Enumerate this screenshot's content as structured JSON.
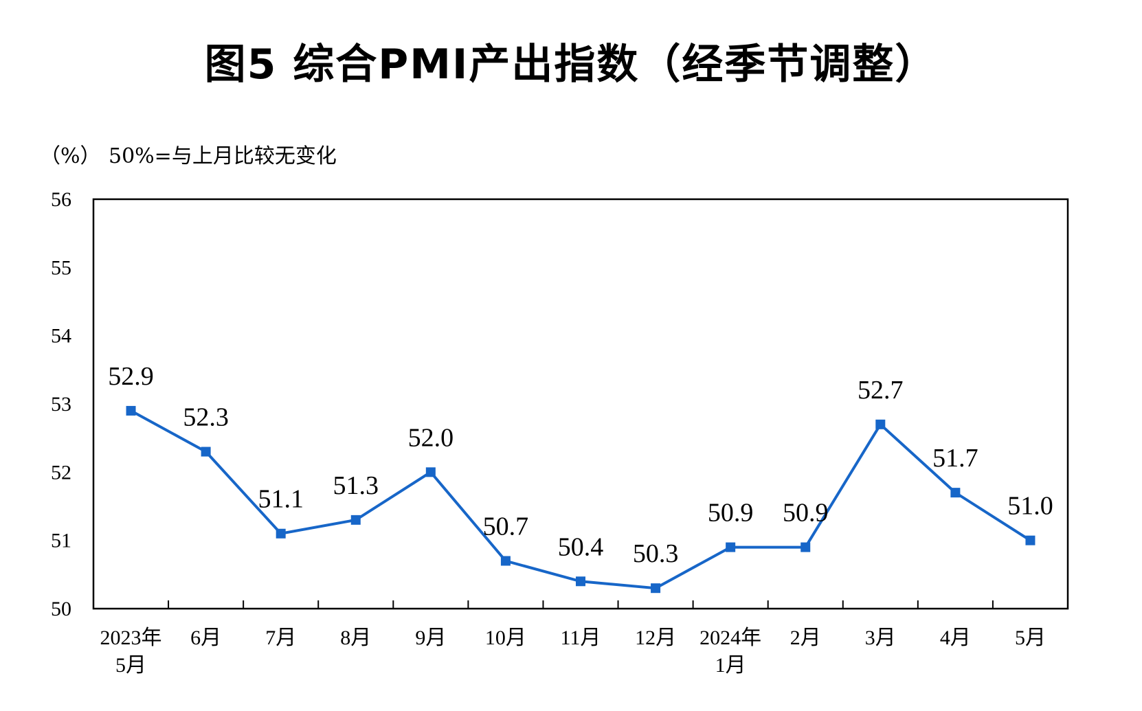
{
  "chart_data": {
    "type": "line",
    "title": "图5  综合PMI产出指数（经季节调整）",
    "y_unit": "（%）",
    "y_note": "50%=与上月比较无变化",
    "categories": [
      [
        "2023年",
        "5月"
      ],
      [
        "6月"
      ],
      [
        "7月"
      ],
      [
        "8月"
      ],
      [
        "9月"
      ],
      [
        "10月"
      ],
      [
        "11月"
      ],
      [
        "12月"
      ],
      [
        "2024年",
        "1月"
      ],
      [
        "2月"
      ],
      [
        "3月"
      ],
      [
        "4月"
      ],
      [
        "5月"
      ]
    ],
    "values": [
      52.9,
      52.3,
      51.1,
      51.3,
      52.0,
      50.7,
      50.4,
      50.3,
      50.9,
      50.9,
      52.7,
      51.7,
      51.0
    ],
    "value_labels": [
      "52.9",
      "52.3",
      "51.1",
      "51.3",
      "52.0",
      "50.7",
      "50.4",
      "50.3",
      "50.9",
      "50.9",
      "52.7",
      "51.7",
      "51.0"
    ],
    "ylim": [
      50,
      56
    ],
    "yticks": [
      "50",
      "51",
      "52",
      "53",
      "54",
      "55",
      "56"
    ],
    "grid": false,
    "legend": "none",
    "colors": {
      "line": "#1766C8",
      "axis": "#000000"
    }
  }
}
